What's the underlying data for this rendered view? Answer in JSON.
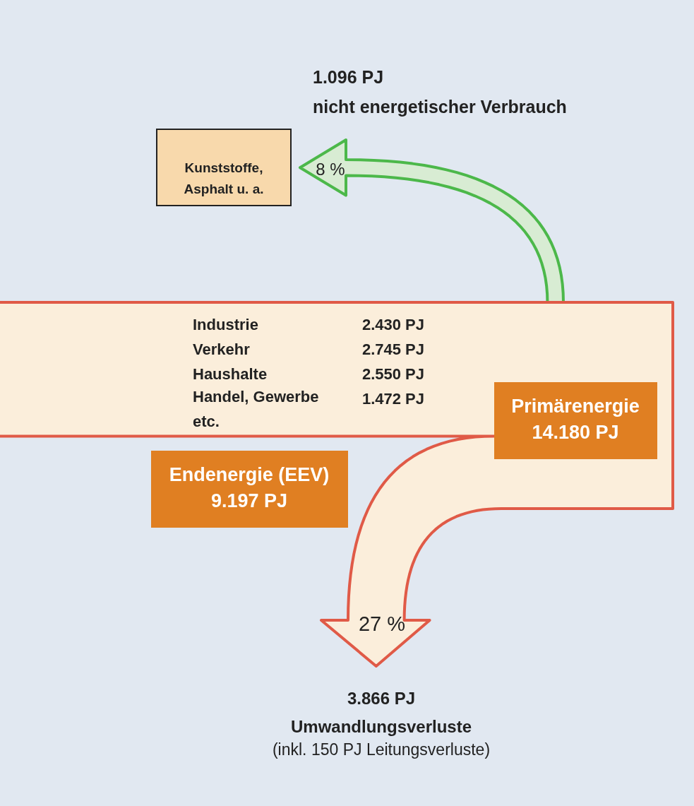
{
  "chart_data": {
    "type": "other",
    "categories": [
      "Primärenergie",
      "Endenergie (EEV)",
      "nicht energetischer Verbrauch",
      "Umwandlungsverluste"
    ],
    "values": [
      14180,
      9197,
      1096,
      3866
    ],
    "value_labels": [
      "14.180 PJ",
      "9.197 PJ",
      "1.096 PJ",
      "3.866 PJ"
    ],
    "annotations": [
      "Kunststoffe,\nAsphalt u. a.",
      "8 %",
      "Industrie",
      "2.430 PJ",
      "Verkehr",
      "2.745 PJ",
      "Haushalte",
      "2.550 PJ",
      "Handel, Gewerbe\netc.",
      "1.472 PJ",
      "27 %",
      "(inkl. 150 PJ Leitungsverluste)"
    ]
  }
}
